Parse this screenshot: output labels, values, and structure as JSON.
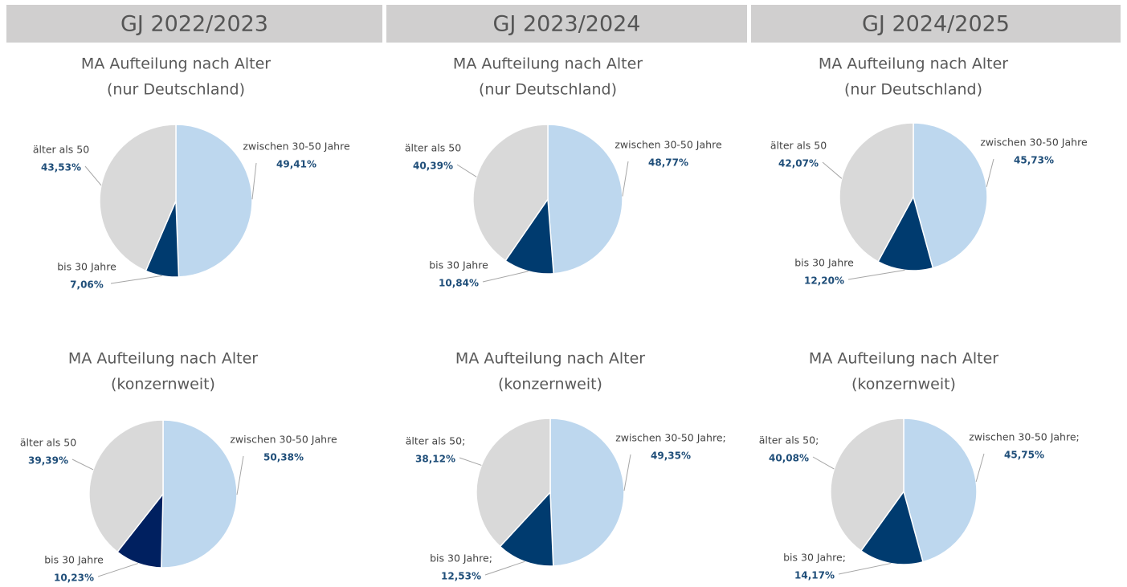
{
  "headers": [
    "GJ 2022/2023",
    "GJ 2023/2024",
    "GJ 2024/2025"
  ],
  "chart_data": [
    {
      "type": "pie",
      "title": "MA Aufteilung nach Alter",
      "subtitle": "(nur Deutschland)",
      "categories": [
        "zwischen 30-50 Jahre",
        "bis 30 Jahre",
        "älter als 50"
      ],
      "values": [
        49.41,
        7.06,
        43.53
      ],
      "value_labels": [
        "49,41%",
        "7,06%",
        "43,53%"
      ],
      "colors": [
        "#bdd7ee",
        "#003b6f",
        "#d9d9d9"
      ]
    },
    {
      "type": "pie",
      "title": "MA Aufteilung nach Alter",
      "subtitle": "(nur Deutschland)",
      "categories": [
        "zwischen 30-50 Jahre",
        "bis 30 Jahre",
        "älter als 50"
      ],
      "values": [
        48.77,
        10.84,
        40.39
      ],
      "value_labels": [
        "48,77%",
        "10,84%",
        "40,39%"
      ],
      "colors": [
        "#bdd7ee",
        "#003b6f",
        "#d9d9d9"
      ]
    },
    {
      "type": "pie",
      "title": "MA Aufteilung nach Alter",
      "subtitle": "(nur Deutschland)",
      "categories": [
        "zwischen 30-50 Jahre",
        "bis 30 Jahre",
        "älter als 50"
      ],
      "values": [
        45.73,
        12.2,
        42.07
      ],
      "value_labels": [
        "45,73%",
        "12,20%",
        "42,07%"
      ],
      "colors": [
        "#bdd7ee",
        "#003b6f",
        "#d9d9d9"
      ]
    },
    {
      "type": "pie",
      "title": "MA Aufteilung nach Alter",
      "subtitle": "(konzernweit)",
      "categories": [
        "zwischen 30-50 Jahre",
        "bis 30 Jahre",
        "älter als 50"
      ],
      "values": [
        50.38,
        10.23,
        39.39
      ],
      "value_labels": [
        "50,38%",
        "10,23%",
        "39,39%"
      ],
      "colors": [
        "#bdd7ee",
        "#002060",
        "#d9d9d9"
      ]
    },
    {
      "type": "pie",
      "title": "MA Aufteilung nach Alter",
      "subtitle": "(konzernweit)",
      "categories": [
        "zwischen 30-50 Jahre;",
        "bis 30 Jahre;",
        "älter als 50;"
      ],
      "values": [
        49.35,
        12.53,
        38.12
      ],
      "value_labels": [
        "49,35%",
        "12,53%",
        "38,12%"
      ],
      "colors": [
        "#bdd7ee",
        "#003b6f",
        "#d9d9d9"
      ]
    },
    {
      "type": "pie",
      "title": "MA Aufteilung nach Alter",
      "subtitle": "(konzernweit)",
      "categories": [
        "zwischen 30-50 Jahre;",
        "bis 30 Jahre;",
        "älter als 50;"
      ],
      "values": [
        45.75,
        14.17,
        40.08
      ],
      "value_labels": [
        "45,75%",
        "14,17%",
        "40,08%"
      ],
      "colors": [
        "#bdd7ee",
        "#003b6f",
        "#d9d9d9"
      ]
    }
  ]
}
